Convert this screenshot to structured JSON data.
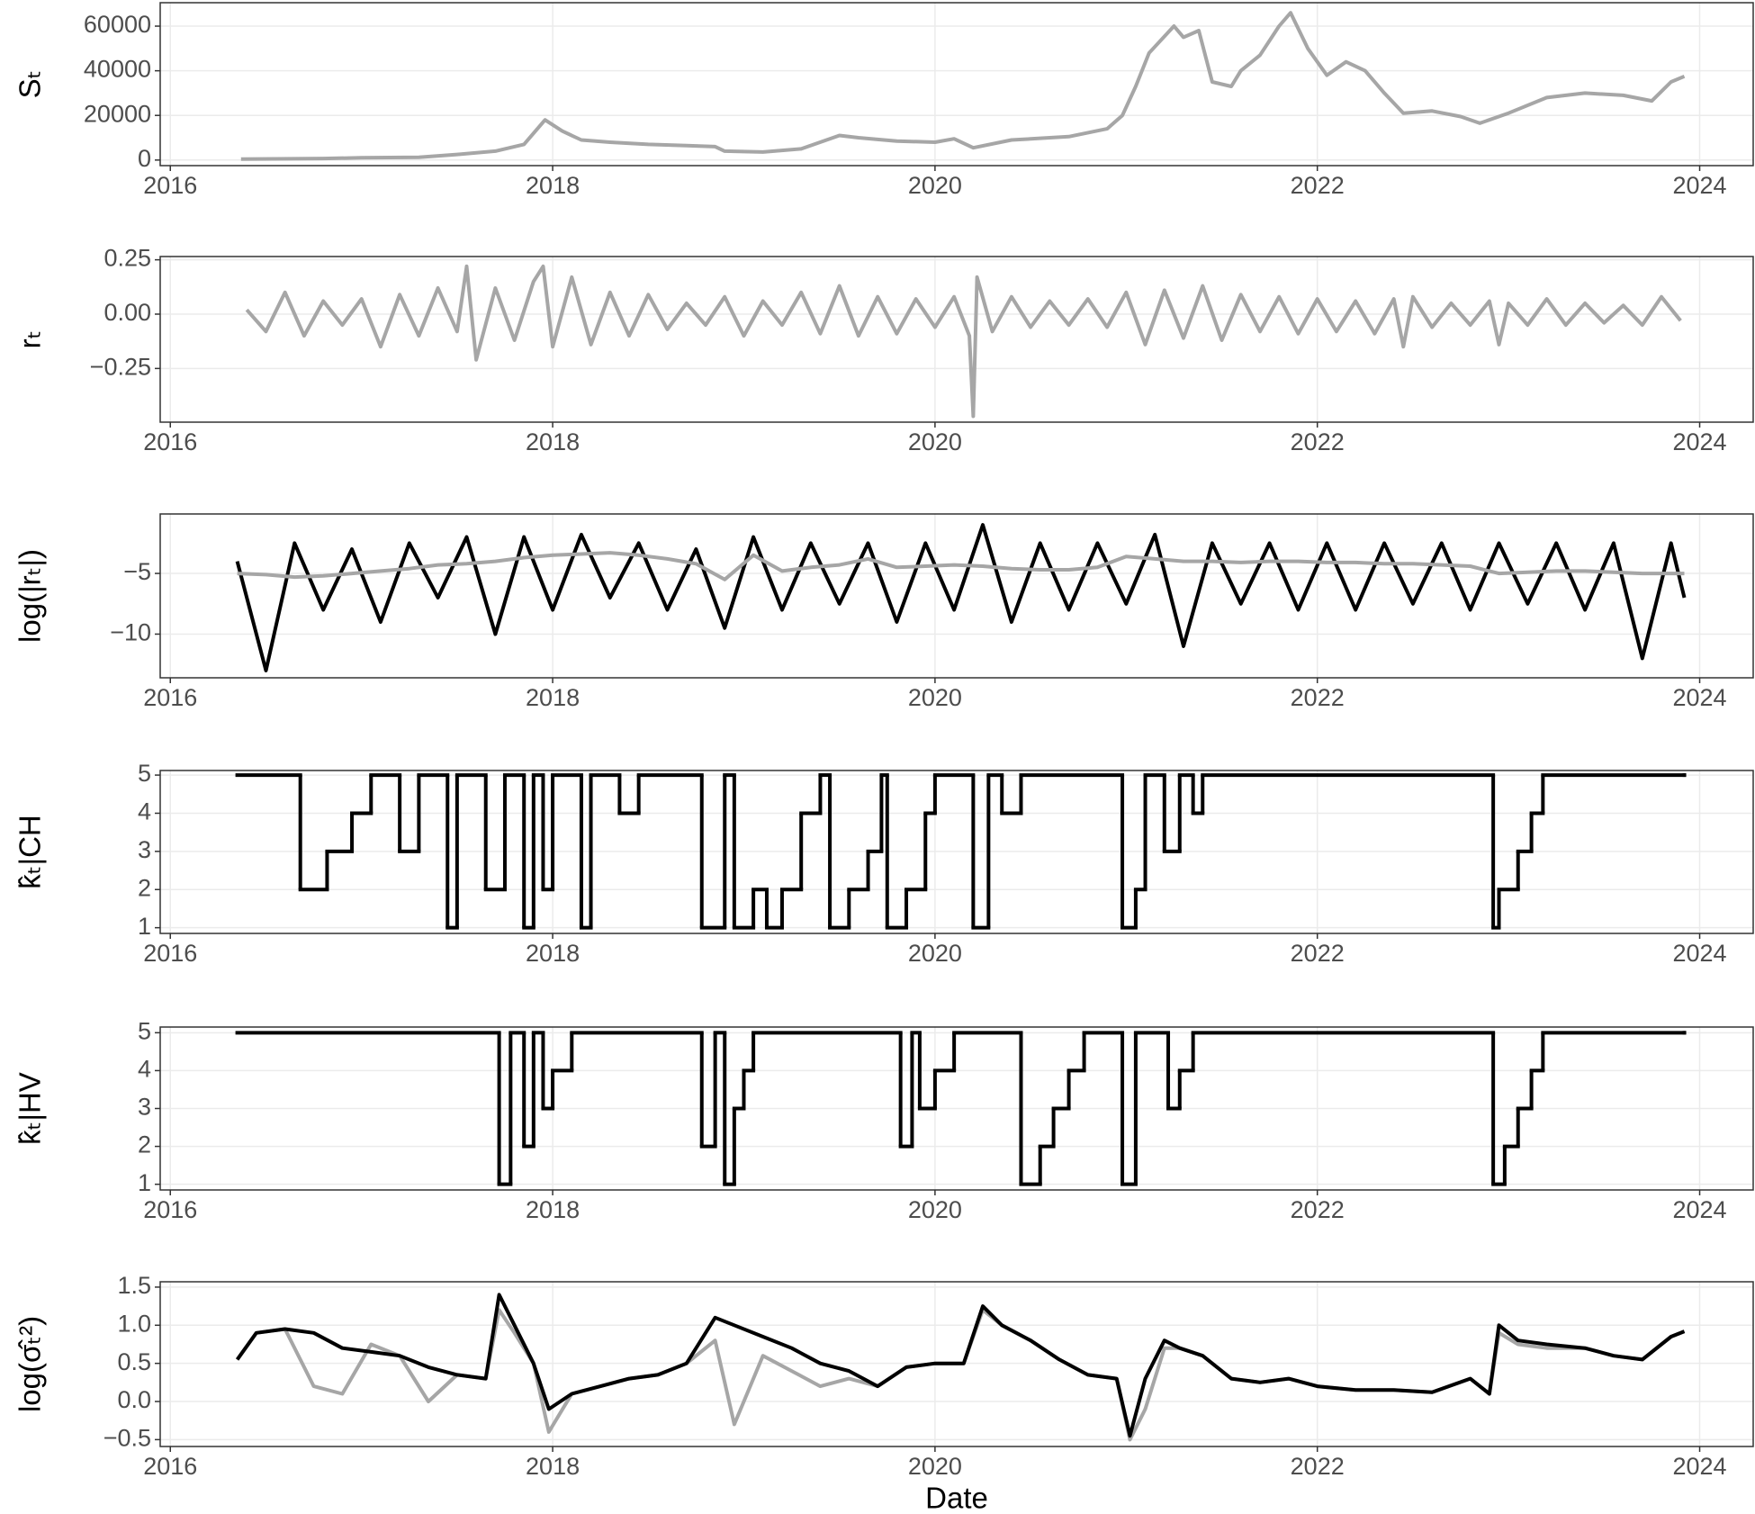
{
  "chart_data": [
    {
      "type": "line",
      "ylabel": "Sₜ",
      "x": [
        2016.37,
        2016.8,
        2017.0,
        2017.3,
        2017.5,
        2017.7,
        2017.85,
        2017.96,
        2018.05,
        2018.15,
        2018.3,
        2018.5,
        2018.7,
        2018.85,
        2018.9,
        2019.1,
        2019.3,
        2019.5,
        2019.6,
        2019.8,
        2020.0,
        2020.1,
        2020.2,
        2020.4,
        2020.7,
        2020.9,
        2020.98,
        2021.05,
        2021.12,
        2021.25,
        2021.3,
        2021.38,
        2021.45,
        2021.55,
        2021.6,
        2021.7,
        2021.8,
        2021.86,
        2021.95,
        2022.05,
        2022.15,
        2022.25,
        2022.35,
        2022.45,
        2022.6,
        2022.75,
        2022.85,
        2023.0,
        2023.2,
        2023.4,
        2023.6,
        2023.75,
        2023.85,
        2023.92
      ],
      "series": [
        {
          "color": "#a6a6a6",
          "values": [
            450,
            700,
            1000,
            1200,
            2500,
            4000,
            7000,
            18000,
            13000,
            9000,
            8000,
            7000,
            6500,
            6000,
            4000,
            3600,
            5000,
            11000,
            10000,
            8500,
            8000,
            9500,
            5500,
            9000,
            10500,
            14000,
            20000,
            33000,
            48000,
            60000,
            55000,
            58000,
            35000,
            33000,
            40000,
            47000,
            60000,
            66000,
            50000,
            38000,
            44000,
            40000,
            30000,
            21000,
            22000,
            19500,
            16500,
            21000,
            28000,
            30000,
            29000,
            26500,
            35000,
            37500
          ]
        }
      ],
      "xlim": [
        2015.947,
        2024.28
      ],
      "xticks": [
        2016,
        2018,
        2020,
        2022,
        2024
      ],
      "ylim": [
        -2500,
        70500
      ],
      "yticks": [
        0,
        20000,
        40000,
        60000
      ],
      "grid": true
    },
    {
      "type": "line",
      "ylabel": "rₜ",
      "x": [
        2016.4,
        2016.5,
        2016.6,
        2016.7,
        2016.8,
        2016.9,
        2017.0,
        2017.1,
        2017.2,
        2017.3,
        2017.4,
        2017.5,
        2017.55,
        2017.6,
        2017.7,
        2017.8,
        2017.9,
        2017.95,
        2018.0,
        2018.1,
        2018.2,
        2018.3,
        2018.4,
        2018.5,
        2018.6,
        2018.7,
        2018.8,
        2018.9,
        2019.0,
        2019.1,
        2019.2,
        2019.3,
        2019.4,
        2019.5,
        2019.6,
        2019.7,
        2019.8,
        2019.9,
        2020.0,
        2020.1,
        2020.18,
        2020.2,
        2020.22,
        2020.3,
        2020.4,
        2020.5,
        2020.6,
        2020.7,
        2020.8,
        2020.9,
        2021.0,
        2021.1,
        2021.2,
        2021.3,
        2021.4,
        2021.5,
        2021.6,
        2021.7,
        2021.8,
        2021.9,
        2022.0,
        2022.1,
        2022.2,
        2022.3,
        2022.4,
        2022.45,
        2022.5,
        2022.6,
        2022.7,
        2022.8,
        2022.9,
        2022.95,
        2023.0,
        2023.1,
        2023.2,
        2023.3,
        2023.4,
        2023.5,
        2023.6,
        2023.7,
        2023.8,
        2023.9
      ],
      "series": [
        {
          "color": "#a6a6a6",
          "values": [
            0.02,
            -0.08,
            0.1,
            -0.1,
            0.06,
            -0.05,
            0.07,
            -0.15,
            0.09,
            -0.1,
            0.12,
            -0.08,
            0.22,
            -0.21,
            0.12,
            -0.12,
            0.15,
            0.22,
            -0.15,
            0.17,
            -0.14,
            0.1,
            -0.1,
            0.09,
            -0.07,
            0.05,
            -0.05,
            0.08,
            -0.1,
            0.06,
            -0.05,
            0.1,
            -0.09,
            0.13,
            -0.1,
            0.08,
            -0.09,
            0.07,
            -0.06,
            0.08,
            -0.1,
            -0.47,
            0.17,
            -0.08,
            0.08,
            -0.06,
            0.06,
            -0.05,
            0.07,
            -0.06,
            0.1,
            -0.14,
            0.11,
            -0.11,
            0.13,
            -0.12,
            0.09,
            -0.08,
            0.08,
            -0.09,
            0.07,
            -0.08,
            0.06,
            -0.09,
            0.07,
            -0.15,
            0.08,
            -0.06,
            0.05,
            -0.05,
            0.06,
            -0.14,
            0.05,
            -0.05,
            0.07,
            -0.05,
            0.05,
            -0.04,
            0.04,
            -0.05,
            0.08,
            -0.03
          ]
        }
      ],
      "xlim": [
        2015.947,
        2024.28
      ],
      "xticks": [
        2016,
        2018,
        2020,
        2022,
        2024
      ],
      "ylim": [
        -0.497,
        0.265
      ],
      "yticks": [
        {
          "value": -0.25,
          "label": "−0.25"
        },
        {
          "value": 0,
          "label": "0.00"
        },
        0.25
      ],
      "grid": true
    },
    {
      "type": "line",
      "ylabel": "log(|rₜ|)",
      "x": [
        2016.35,
        2016.5,
        2016.65,
        2016.8,
        2016.95,
        2017.1,
        2017.25,
        2017.4,
        2017.55,
        2017.7,
        2017.85,
        2018.0,
        2018.15,
        2018.3,
        2018.45,
        2018.6,
        2018.75,
        2018.9,
        2019.05,
        2019.2,
        2019.35,
        2019.5,
        2019.65,
        2019.8,
        2019.95,
        2020.1,
        2020.25,
        2020.4,
        2020.55,
        2020.7,
        2020.85,
        2021.0,
        2021.15,
        2021.3,
        2021.45,
        2021.6,
        2021.75,
        2021.9,
        2022.05,
        2022.2,
        2022.35,
        2022.5,
        2022.65,
        2022.8,
        2022.95,
        2023.1,
        2023.25,
        2023.4,
        2023.55,
        2023.7,
        2023.85,
        2023.92
      ],
      "series": [
        {
          "color": "#000000",
          "values": [
            -4,
            -13,
            -2.5,
            -8,
            -3,
            -9,
            -2.5,
            -7,
            -2,
            -10,
            -2,
            -8,
            -1.8,
            -7,
            -2.5,
            -8,
            -3,
            -9.5,
            -2,
            -8,
            -2.5,
            -7.5,
            -2.5,
            -9,
            -2.5,
            -8,
            -1,
            -9,
            -2.5,
            -8,
            -2.5,
            -7.5,
            -1.8,
            -11,
            -2.5,
            -7.5,
            -2.5,
            -8,
            -2.5,
            -8,
            -2.5,
            -7.5,
            -2.5,
            -8,
            -2.5,
            -7.5,
            -2.5,
            -8,
            -2.5,
            -12,
            -2.5,
            -7
          ]
        },
        {
          "color": "#a6a6a6",
          "values": [
            -5,
            -5.1,
            -5.3,
            -5.2,
            -5,
            -4.8,
            -4.6,
            -4.3,
            -4.2,
            -4,
            -3.7,
            -3.5,
            -3.4,
            -3.3,
            -3.5,
            -3.8,
            -4.2,
            -5.5,
            -3.5,
            -4.8,
            -4.5,
            -4.3,
            -3.8,
            -4.5,
            -4.4,
            -4.3,
            -4.4,
            -4.6,
            -4.7,
            -4.7,
            -4.5,
            -3.6,
            -3.8,
            -4,
            -4,
            -4.1,
            -4,
            -4,
            -4.1,
            -4.1,
            -4.2,
            -4.2,
            -4.3,
            -4.4,
            -5,
            -4.9,
            -4.8,
            -4.8,
            -4.9,
            -5,
            -5,
            -5
          ]
        }
      ],
      "xlim": [
        2015.947,
        2024.28
      ],
      "xticks": [
        2016,
        2018,
        2020,
        2022,
        2024
      ],
      "ylim": [
        -13.6,
        -0.1
      ],
      "yticks": [
        {
          "value": -10,
          "label": "−10"
        },
        {
          "value": -5,
          "label": "−5"
        }
      ],
      "grid": true
    },
    {
      "type": "line",
      "step": true,
      "ylabel": "k̂ₜ|CH",
      "x": [
        2016.35,
        2016.68,
        2016.82,
        2016.95,
        2017.05,
        2017.2,
        2017.3,
        2017.45,
        2017.5,
        2017.65,
        2017.75,
        2017.85,
        2017.9,
        2017.95,
        2018.0,
        2018.15,
        2018.2,
        2018.35,
        2018.45,
        2018.78,
        2018.9,
        2018.95,
        2019.05,
        2019.12,
        2019.2,
        2019.3,
        2019.4,
        2019.45,
        2019.55,
        2019.65,
        2019.72,
        2019.75,
        2019.85,
        2019.95,
        2020.0,
        2020.2,
        2020.28,
        2020.35,
        2020.45,
        2020.98,
        2021.05,
        2021.1,
        2021.2,
        2021.28,
        2021.35,
        2021.4,
        2022.92,
        2022.95,
        2023.05,
        2023.12,
        2023.18,
        2023.92
      ],
      "series": [
        {
          "color": "#000000",
          "values": [
            5,
            2,
            3,
            4,
            5,
            3,
            5,
            1,
            5,
            2,
            5,
            1,
            5,
            2,
            5,
            1,
            5,
            4,
            5,
            1,
            5,
            1,
            2,
            1,
            2,
            4,
            5,
            1,
            2,
            3,
            5,
            1,
            2,
            4,
            5,
            1,
            5,
            4,
            5,
            1,
            2,
            5,
            3,
            5,
            4,
            5,
            1,
            2,
            3,
            4,
            5,
            5
          ]
        }
      ],
      "xlim": [
        2015.947,
        2024.28
      ],
      "xticks": [
        2016,
        2018,
        2020,
        2022,
        2024
      ],
      "ylim": [
        0.85,
        5.12
      ],
      "yticks": [
        1,
        2,
        3,
        4,
        5
      ],
      "grid": true
    },
    {
      "type": "line",
      "step": true,
      "ylabel": "k̂ₜ|HV",
      "x": [
        2016.35,
        2017.72,
        2017.78,
        2017.85,
        2017.9,
        2017.95,
        2018.0,
        2018.1,
        2018.78,
        2018.85,
        2018.9,
        2018.95,
        2019.0,
        2019.05,
        2019.82,
        2019.88,
        2019.92,
        2020.0,
        2020.1,
        2020.45,
        2020.55,
        2020.62,
        2020.7,
        2020.78,
        2020.98,
        2021.05,
        2021.22,
        2021.28,
        2021.35,
        2022.92,
        2022.98,
        2023.05,
        2023.12,
        2023.18,
        2023.92
      ],
      "series": [
        {
          "color": "#000000",
          "values": [
            5,
            1,
            5,
            2,
            5,
            3,
            4,
            5,
            2,
            5,
            1,
            3,
            4,
            5,
            2,
            5,
            3,
            4,
            5,
            1,
            2,
            3,
            4,
            5,
            1,
            5,
            3,
            4,
            5,
            1,
            2,
            3,
            4,
            5,
            5
          ]
        }
      ],
      "xlim": [
        2015.947,
        2024.28
      ],
      "xticks": [
        2016,
        2018,
        2020,
        2022,
        2024
      ],
      "ylim": [
        0.85,
        5.15
      ],
      "yticks": [
        1,
        2,
        3,
        4,
        5
      ],
      "grid": true
    },
    {
      "type": "line",
      "ylabel": "log(σ̂ₜ²)",
      "xlabel": "Date",
      "x": [
        2016.35,
        2016.45,
        2016.6,
        2016.75,
        2016.9,
        2017.05,
        2017.2,
        2017.35,
        2017.5,
        2017.65,
        2017.72,
        2017.8,
        2017.9,
        2017.98,
        2018.1,
        2018.25,
        2018.4,
        2018.55,
        2018.7,
        2018.85,
        2018.95,
        2019.1,
        2019.25,
        2019.4,
        2019.55,
        2019.7,
        2019.85,
        2020.0,
        2020.15,
        2020.25,
        2020.35,
        2020.5,
        2020.65,
        2020.8,
        2020.95,
        2021.02,
        2021.1,
        2021.2,
        2021.28,
        2021.4,
        2021.55,
        2021.7,
        2021.85,
        2022.0,
        2022.2,
        2022.4,
        2022.6,
        2022.8,
        2022.9,
        2022.95,
        2023.05,
        2023.2,
        2023.4,
        2023.55,
        2023.7,
        2023.85,
        2023.92
      ],
      "series": [
        {
          "color": "#a6a6a6",
          "values": [
            0.55,
            0.9,
            0.95,
            0.2,
            0.1,
            0.75,
            0.6,
            0.0,
            0.35,
            0.3,
            1.2,
            0.9,
            0.5,
            -0.4,
            0.1,
            0.2,
            0.3,
            0.35,
            0.5,
            0.8,
            -0.3,
            0.6,
            0.4,
            0.2,
            0.3,
            0.2,
            0.45,
            0.5,
            0.5,
            1.2,
            1.0,
            0.8,
            0.55,
            0.35,
            0.3,
            -0.5,
            -0.1,
            0.7,
            0.7,
            0.6,
            0.3,
            0.25,
            0.3,
            0.2,
            0.15,
            0.15,
            0.12,
            0.3,
            0.1,
            0.9,
            0.75,
            0.7,
            0.7,
            0.6,
            0.55,
            0.85,
            0.92
          ]
        },
        {
          "color": "#000000",
          "values": [
            0.55,
            0.9,
            0.95,
            0.9,
            0.7,
            0.65,
            0.6,
            0.45,
            0.35,
            0.3,
            1.4,
            1.0,
            0.5,
            -0.1,
            0.1,
            0.2,
            0.3,
            0.35,
            0.5,
            1.1,
            1.0,
            0.85,
            0.7,
            0.5,
            0.4,
            0.2,
            0.45,
            0.5,
            0.5,
            1.25,
            1.0,
            0.8,
            0.55,
            0.35,
            0.3,
            -0.45,
            0.3,
            0.8,
            0.7,
            0.6,
            0.3,
            0.25,
            0.3,
            0.2,
            0.15,
            0.15,
            0.12,
            0.3,
            0.1,
            1.0,
            0.8,
            0.75,
            0.7,
            0.6,
            0.55,
            0.85,
            0.92
          ]
        }
      ],
      "xlim": [
        2015.947,
        2024.28
      ],
      "xticks": [
        2016,
        2018,
        2020,
        2022,
        2024
      ],
      "ylim": [
        -0.59,
        1.57
      ],
      "yticks": [
        {
          "value": -0.5,
          "label": "−0.5"
        },
        {
          "value": 0,
          "label": "0.0"
        },
        0.5,
        {
          "value": 1,
          "label": "1.0"
        },
        1.5
      ],
      "grid": true
    }
  ]
}
